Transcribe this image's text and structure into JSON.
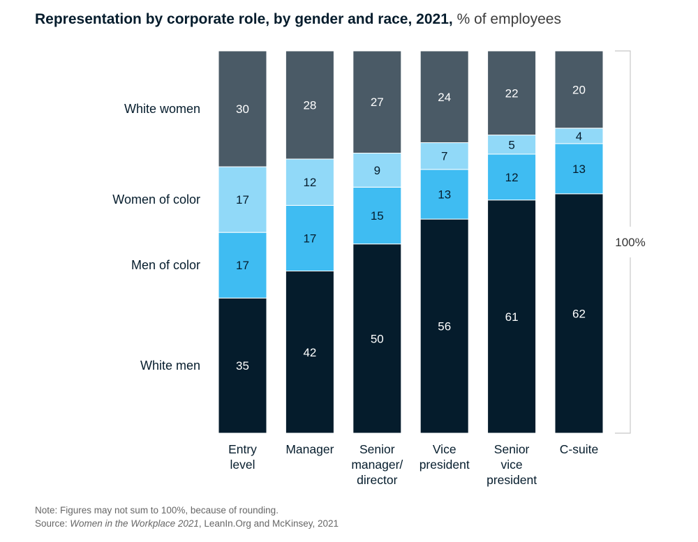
{
  "title": {
    "main": "Representation by corporate role, by gender and race, 2021,",
    "unit": "% of employees"
  },
  "chart_data": {
    "type": "bar",
    "stacked": true,
    "categories": [
      [
        "Entry",
        "level"
      ],
      [
        "Manager"
      ],
      [
        "Senior",
        "manager/",
        "director"
      ],
      [
        "Vice",
        "president"
      ],
      [
        "Senior",
        "vice",
        "president"
      ],
      [
        "C-suite"
      ]
    ],
    "series": [
      {
        "name": "White men",
        "color": "#051c2c",
        "values": [
          35,
          42,
          50,
          56,
          61,
          62
        ]
      },
      {
        "name": "Men of color",
        "color": "#3fbcf2",
        "values": [
          17,
          17,
          15,
          13,
          12,
          13
        ]
      },
      {
        "name": "Women of color",
        "color": "#91d9f8",
        "values": [
          17,
          12,
          9,
          7,
          5,
          4
        ]
      },
      {
        "name": "White women",
        "color": "#4a5a66",
        "values": [
          30,
          28,
          27,
          24,
          22,
          20
        ]
      }
    ],
    "total_label": "100%",
    "ylim": [
      0,
      100
    ]
  },
  "notes": {
    "note": "Note: Figures may not sum to 100%, because of rounding.",
    "source_prefix": "Source: ",
    "source_title": "Women in the Workplace 2021",
    "source_suffix": ", LeanIn.Org and McKinsey, 2021"
  }
}
